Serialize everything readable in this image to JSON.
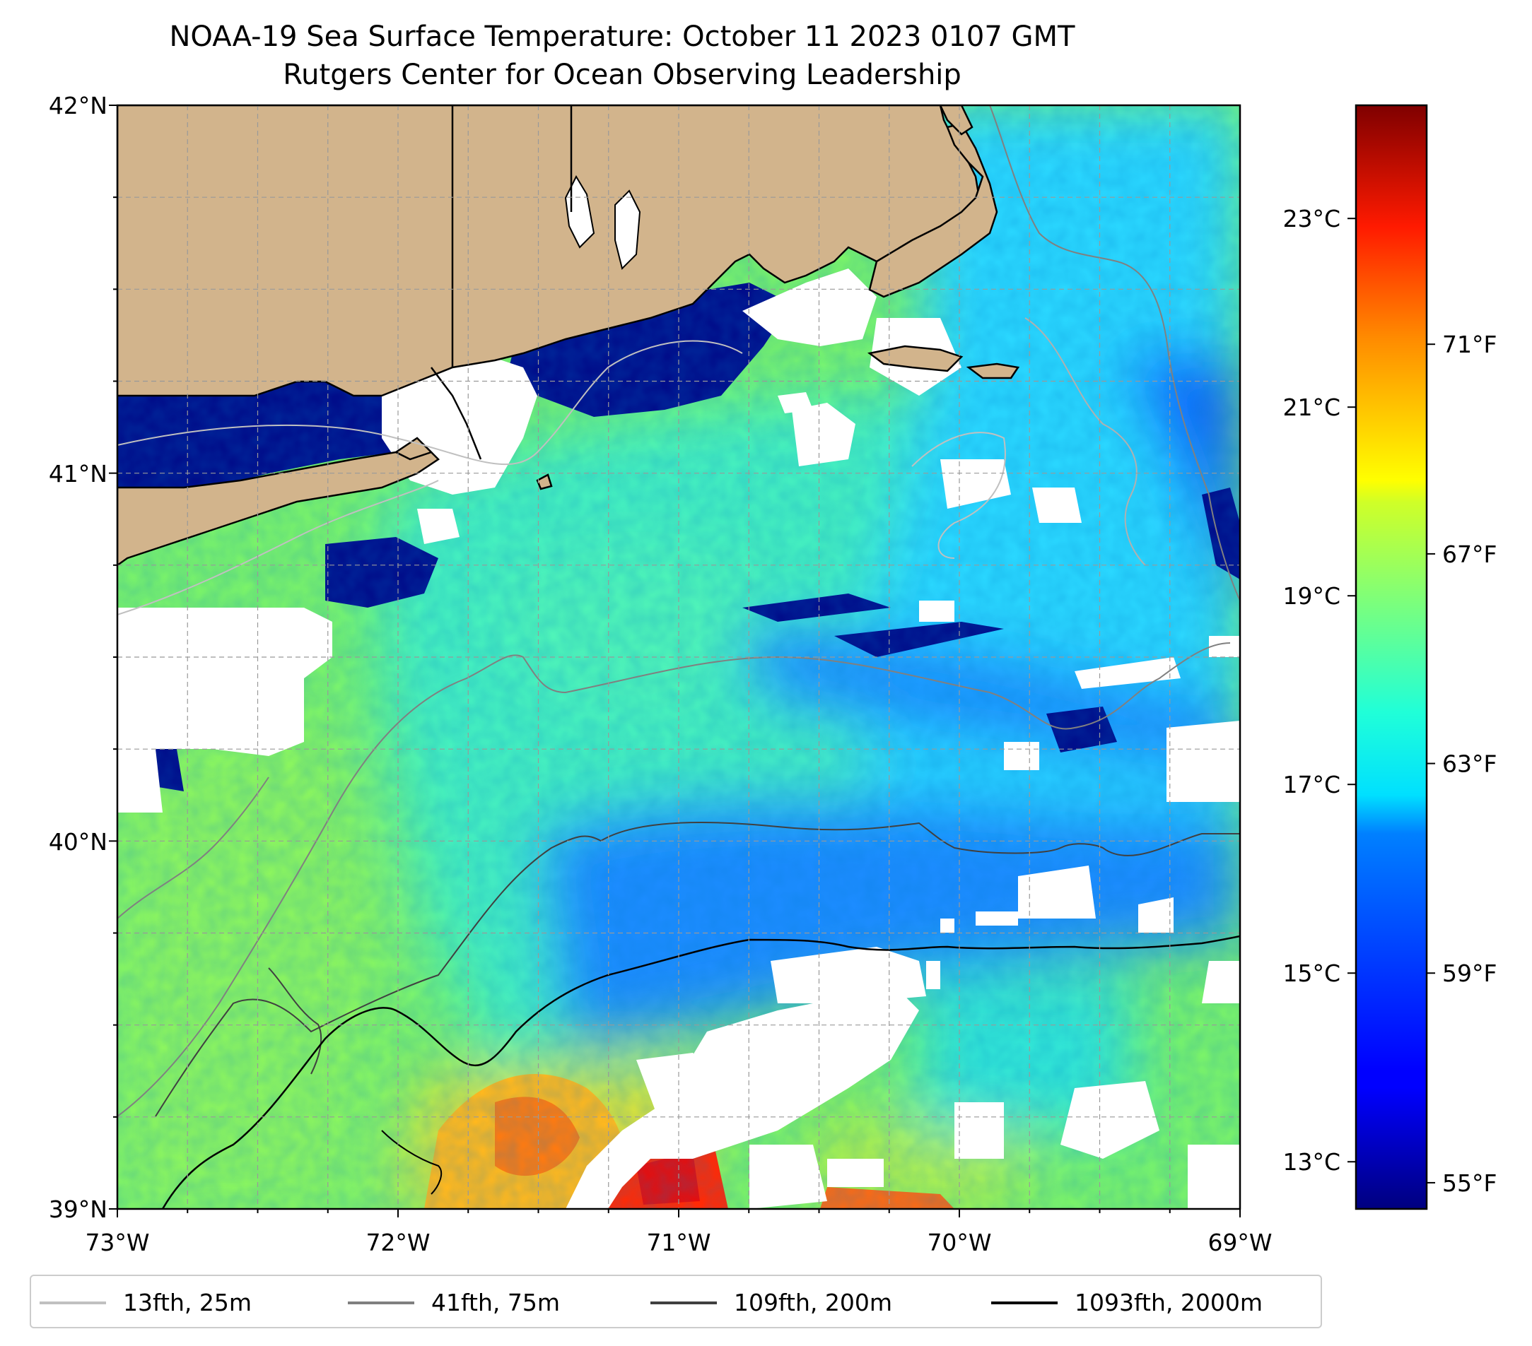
{
  "title": {
    "line1": "NOAA-19 Sea Surface Temperature: October 11 2023 0107 GMT",
    "line2": "Rutgers Center for Ocean Observing Leadership"
  },
  "map": {
    "projection": "PlateCarree",
    "lon_range": [
      -73,
      -69
    ],
    "lat_range": [
      39,
      42
    ],
    "x_ticks": [
      "73°W",
      "72°W",
      "71°W",
      "70°W",
      "69°W"
    ],
    "y_ticks": [
      "42°N",
      "41°N",
      "40°N",
      "39°N"
    ],
    "gridlines": "dashed, every 0.25°",
    "land_color": "#d2b48c",
    "cloud_mask_color": "#ffffff",
    "regions": [
      "Long Island",
      "Connecticut / Rhode Island coast",
      "Massachusetts",
      "Cape Cod",
      "Martha's Vineyard",
      "Nantucket"
    ]
  },
  "colorbar": {
    "colormap": "jet",
    "celsius_ticks": [
      "23°C",
      "21°C",
      "19°C",
      "17°C",
      "15°C",
      "13°C"
    ],
    "fahrenheit_ticks": [
      "71°F",
      "67°F",
      "63°F",
      "59°F",
      "55°F"
    ],
    "range_c": [
      12.5,
      24.2
    ]
  },
  "legend": {
    "placement": "bottom",
    "items": [
      {
        "label": "13fth, 25m",
        "color": "#c0c0c0"
      },
      {
        "label": "41fth, 75m",
        "color": "#808080"
      },
      {
        "label": "109fth, 200m",
        "color": "#404040"
      },
      {
        "label": "1093fth, 2000m",
        "color": "#000000"
      }
    ]
  }
}
